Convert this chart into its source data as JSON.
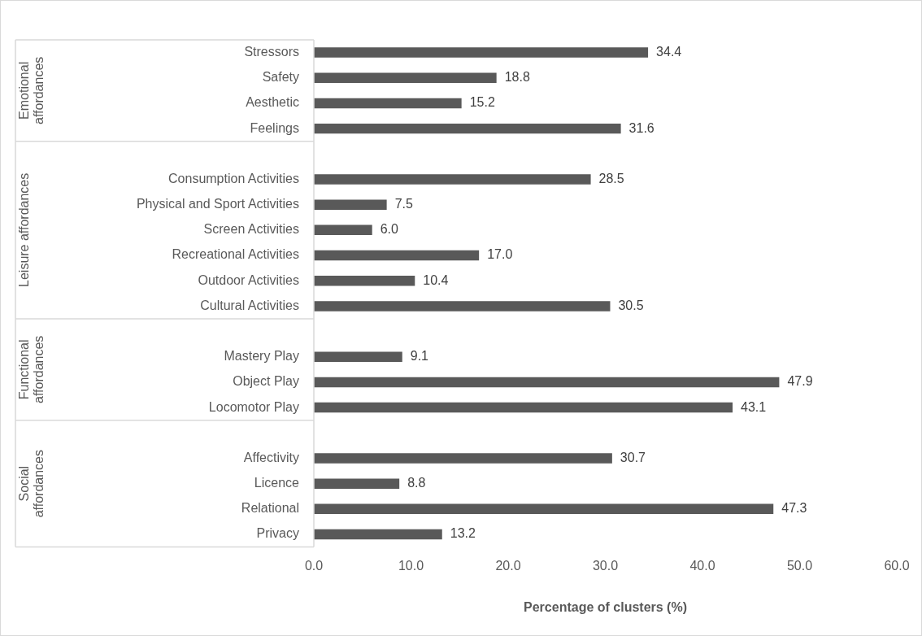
{
  "chart_data": {
    "type": "bar",
    "orientation": "horizontal",
    "xlabel": "Percentage of clusters (%)",
    "categories": [
      "Stressors",
      "Safety",
      "Aesthetic",
      "Feelings",
      null,
      "Consumption Activities",
      "Physical and Sport Activities",
      "Screen Activities",
      "Recreational Activities",
      "Outdoor Activities",
      "Cultural Activities",
      null,
      "Mastery Play",
      "Object Play",
      "Locomotor Play",
      null,
      "Affectivity",
      "Licence",
      "Relational",
      "Privacy"
    ],
    "values": [
      34.4,
      18.8,
      15.2,
      31.6,
      null,
      28.5,
      7.5,
      6.0,
      17.0,
      10.4,
      30.5,
      null,
      9.1,
      47.9,
      43.1,
      null,
      30.7,
      8.8,
      47.3,
      13.2
    ],
    "value_labels": [
      "34.4",
      "18.8",
      "15.2",
      "31.6",
      null,
      "28.5",
      "7.5",
      "6.0",
      "17.0",
      "10.4",
      "30.5",
      null,
      "9.1",
      "47.9",
      "43.1",
      null,
      "30.7",
      "8.8",
      "47.3",
      "13.2"
    ],
    "color": "#595959",
    "xlim": [
      0,
      60
    ],
    "xticks": [
      {
        "value": 0,
        "label": "0.0"
      },
      {
        "value": 10,
        "label": "10.0"
      },
      {
        "value": 20,
        "label": "20.0"
      },
      {
        "value": 30,
        "label": "30.0"
      },
      {
        "value": 40,
        "label": "40.0"
      },
      {
        "value": 50,
        "label": "50.0"
      },
      {
        "value": 60,
        "label": "60.0"
      }
    ],
    "annotations": [
      "Emotional\naffordances",
      "Leisure affordances",
      "Functional\naffordances",
      "Social\naffordances"
    ],
    "grid": false,
    "legend": false
  }
}
